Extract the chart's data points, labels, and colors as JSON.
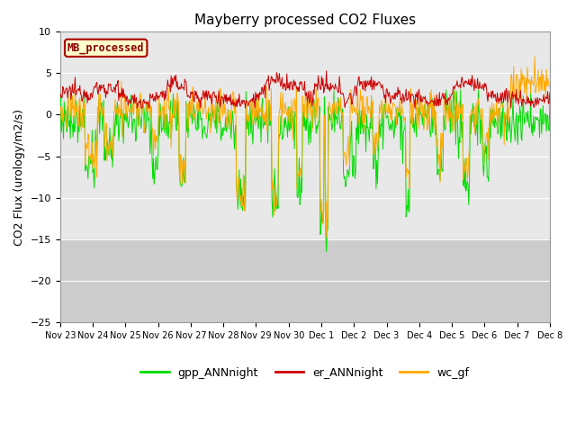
{
  "title": "Mayberry processed CO2 Fluxes",
  "ylabel": "CO2 Flux (urology/m2/s)",
  "ylim": [
    -25,
    10
  ],
  "yticks": [
    -25,
    -20,
    -15,
    -10,
    -5,
    0,
    5,
    10
  ],
  "xtick_labels": [
    "Nov 23",
    "Nov 24",
    "Nov 25",
    "Nov 26",
    "Nov 27",
    "Nov 28",
    "Nov 29",
    "Nov 30",
    "Dec 1",
    "Dec 2",
    "Dec 3",
    "Dec 4",
    "Dec 5",
    "Dec 6",
    "Dec 7",
    "Dec 8"
  ],
  "legend_labels": [
    "gpp_ANNnight",
    "er_ANNnight",
    "wc_gf"
  ],
  "legend_colors": [
    "#00dd00",
    "#cc0000",
    "#ffaa00"
  ],
  "text_box_label": "MB_processed",
  "text_box_facecolor": "#ffffcc",
  "text_box_edgecolor": "#aa0000",
  "text_box_textcolor": "#880000",
  "background_color": "#ffffff",
  "plot_bg_color": "#e8e8e8",
  "darker_band_color": "#cccccc",
  "n_points": 720,
  "seed": 12345
}
